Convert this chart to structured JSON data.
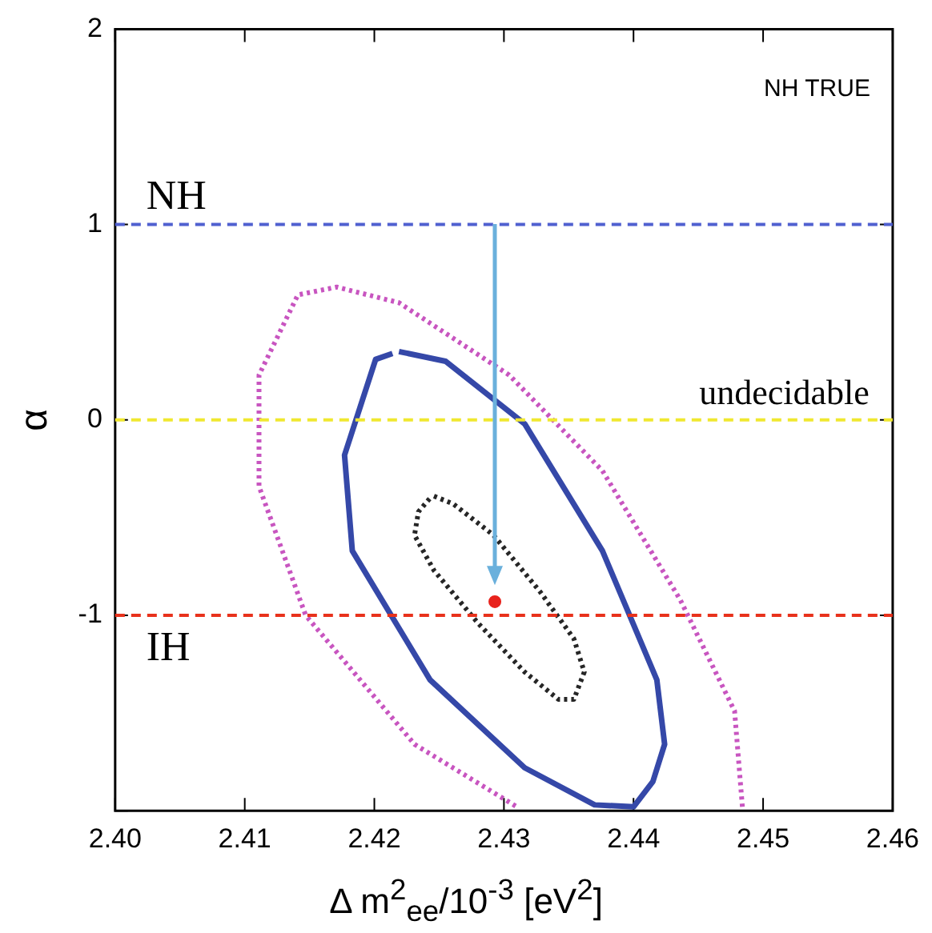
{
  "chart_data": {
    "type": "line",
    "xlabel": "Δ m$^{2}$$_{ee}$/10$^{-3}$ [eV$^{2}$]",
    "ylabel": "α",
    "annotations": [
      "NH TRUE"
    ],
    "xlim": [
      2.4,
      2.46
    ],
    "xticks": [
      {
        "value": 2.4,
        "label": "2.40"
      },
      {
        "value": 2.41,
        "label": "2.41"
      },
      {
        "value": 2.42,
        "label": "2.42"
      },
      {
        "value": 2.43,
        "label": "2.43"
      },
      {
        "value": 2.44,
        "label": "2.44"
      },
      {
        "value": 2.45,
        "label": "2.45"
      },
      {
        "value": 2.46,
        "label": "2.46"
      }
    ],
    "ylim": [
      -2,
      2
    ],
    "yticks": [
      {
        "value": -2,
        "label": null
      },
      -1,
      0,
      1,
      2
    ],
    "series": [
      {
        "color": "#262626",
        "line_style": "dotted",
        "x": [
          2.4246,
          2.4261,
          2.4292,
          2.4328,
          2.4354,
          2.4362,
          2.4354,
          2.4342,
          2.4316,
          2.428,
          2.4246,
          2.4231,
          2.4234,
          2.4243
        ],
        "values": [
          -0.39,
          -0.43,
          -0.59,
          -0.88,
          -1.12,
          -1.29,
          -1.43,
          -1.43,
          -1.29,
          -1.04,
          -0.77,
          -0.59,
          -0.47,
          -0.4
        ]
      },
      {
        "color": "#3548a8",
        "line_style": "solid",
        "x": [
          2.4219,
          2.4255,
          2.4316,
          2.4376,
          2.4418,
          2.4424,
          2.4415,
          2.44,
          2.437,
          2.4316,
          2.4243,
          2.4183,
          2.4177,
          2.4201,
          2.4214
        ],
        "values": [
          0.35,
          0.3,
          -0.02,
          -0.67,
          -1.33,
          -1.66,
          -1.85,
          -1.98,
          -1.97,
          -1.78,
          -1.33,
          -0.67,
          -0.18,
          0.31,
          0.34
        ]
      },
      {
        "color": "#c855c0",
        "line_style": "dotted",
        "x": [
          2.4484,
          2.4478,
          2.4436,
          2.4376,
          2.4304,
          2.4219,
          2.4171,
          2.4141,
          2.4111,
          2.4111,
          2.4147,
          2.4231,
          2.431
        ],
        "values": [
          -1.98,
          -1.49,
          -0.92,
          -0.26,
          0.23,
          0.6,
          0.68,
          0.64,
          0.23,
          -0.34,
          -1.0,
          -1.66,
          -1.98
        ]
      },
      {
        "type": "scatter",
        "color": "#e8221c",
        "marker": "circle",
        "x": [
          2.4293
        ],
        "values": [
          -0.93
        ]
      }
    ],
    "ref_lines": [
      {
        "axis": "y",
        "value": 1,
        "label": "NH",
        "color": "#5060d0",
        "line_style": "dashed"
      },
      {
        "axis": "y",
        "value": 0,
        "label": "undecidable",
        "color": "#f0e830",
        "line_style": "dashed"
      },
      {
        "axis": "y",
        "value": -1,
        "label": "IH",
        "color": "#e8321c",
        "line_style": "dashed"
      }
    ],
    "grid": false,
    "legend": false
  }
}
